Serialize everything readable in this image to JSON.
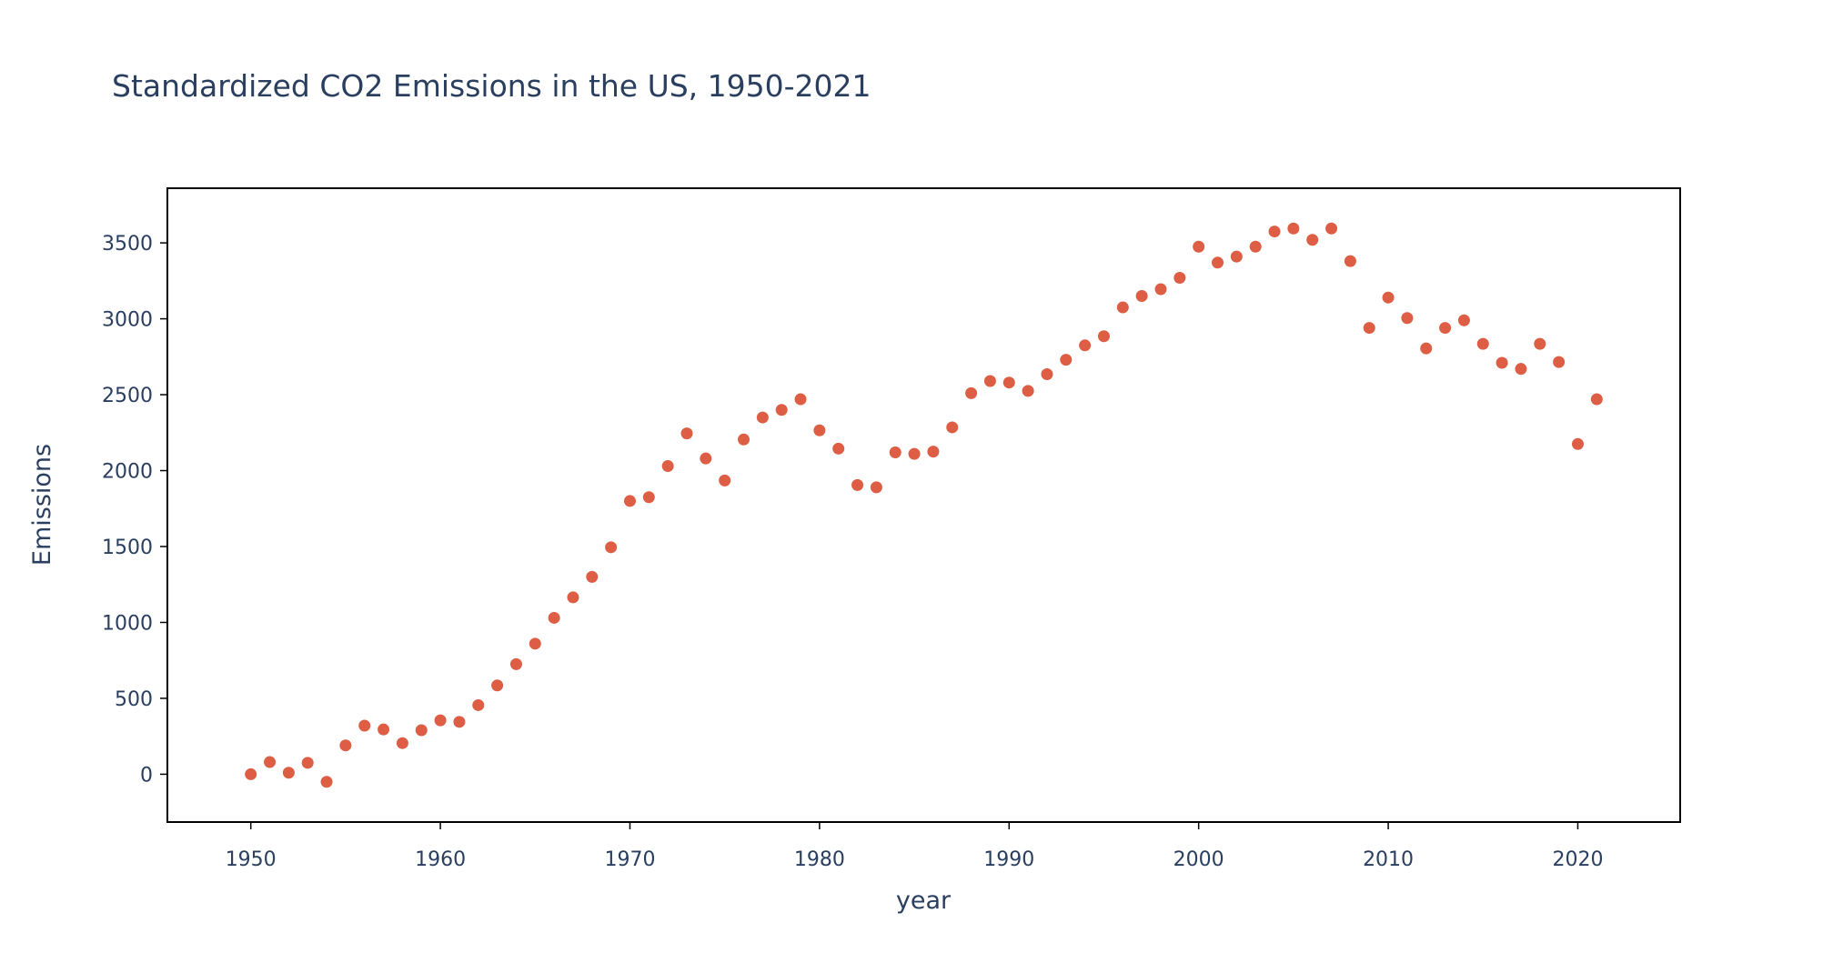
{
  "chart_data": {
    "type": "scatter",
    "title": "Standardized CO2 Emissions in the US, 1950-2021",
    "xlabel": "year",
    "ylabel": "Emissions",
    "xlim": [
      1945.6,
      2025.4
    ],
    "ylim": [
      -315,
      3860
    ],
    "xticks": [
      1950,
      1960,
      1970,
      1980,
      1990,
      2000,
      2010,
      2020
    ],
    "yticks": [
      0,
      500,
      1000,
      1500,
      2000,
      2500,
      3000,
      3500
    ],
    "grid": false,
    "legend": "none",
    "marker_color": "#dd5e44",
    "text_color": "#2a3f5f",
    "series": [
      {
        "x": [
          1950,
          1951,
          1952,
          1953,
          1954,
          1955,
          1956,
          1957,
          1958,
          1959,
          1960,
          1961,
          1962,
          1963,
          1964,
          1965,
          1966,
          1967,
          1968,
          1969,
          1970,
          1971,
          1972,
          1973,
          1974,
          1975,
          1976,
          1977,
          1978,
          1979,
          1980,
          1981,
          1982,
          1983,
          1984,
          1985,
          1986,
          1987,
          1988,
          1989,
          1990,
          1991,
          1992,
          1993,
          1994,
          1995,
          1996,
          1997,
          1998,
          1999,
          2000,
          2001,
          2002,
          2003,
          2004,
          2005,
          2006,
          2007,
          2008,
          2009,
          2010,
          2011,
          2012,
          2013,
          2014,
          2015,
          2016,
          2017,
          2018,
          2019,
          2020,
          2021
        ],
        "y": [
          0,
          80,
          10,
          75,
          -50,
          190,
          320,
          295,
          205,
          290,
          355,
          345,
          455,
          585,
          725,
          860,
          1030,
          1165,
          1300,
          1495,
          1800,
          1825,
          2030,
          2245,
          2080,
          1935,
          2205,
          2350,
          2400,
          2470,
          2265,
          2145,
          1905,
          1890,
          2120,
          2110,
          2125,
          2285,
          2510,
          2590,
          2580,
          2525,
          2635,
          2730,
          2825,
          2885,
          3075,
          3150,
          3195,
          3270,
          3475,
          3370,
          3410,
          3475,
          3575,
          3595,
          3520,
          3595,
          3380,
          2940,
          3140,
          3005,
          2805,
          2940,
          2990,
          2835,
          2710,
          2670,
          2835,
          2715,
          2175,
          2470
        ]
      }
    ]
  }
}
